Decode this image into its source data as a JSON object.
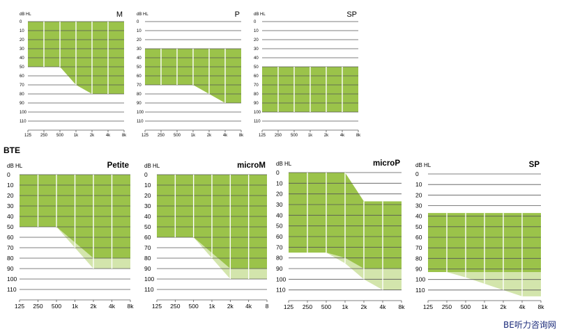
{
  "section_label": "BTE",
  "watermark": "BE听力咨询网",
  "colors": {
    "fill_dark": "#9bc34a",
    "fill_light": "#d3e5ac",
    "grid": "#555555",
    "cell_divider": "#ffffff",
    "text": "#000000"
  },
  "chart_data": [
    {
      "type": "area",
      "title": "M",
      "ylabel": "dB HL",
      "categories": [
        "125",
        "250",
        "500",
        "1k",
        "2k",
        "4k",
        "8k"
      ],
      "yticks": [
        "0",
        "10",
        "20",
        "30",
        "40",
        "50",
        "60",
        "70",
        "80",
        "90",
        "100",
        "110"
      ],
      "ylim": [
        0,
        120
      ],
      "fill_start": "125",
      "top": [
        0,
        0,
        0,
        0,
        0,
        0,
        0
      ],
      "bottom": [
        50,
        50,
        50,
        70,
        80,
        80,
        80
      ],
      "extension": null
    },
    {
      "type": "area",
      "title": "P",
      "ylabel": "dB HL",
      "categories": [
        "125",
        "250",
        "500",
        "1k",
        "2k",
        "4k",
        "8k"
      ],
      "yticks": [
        "0",
        "10",
        "20",
        "30",
        "40",
        "50",
        "60",
        "70",
        "80",
        "90",
        "100",
        "110"
      ],
      "ylim": [
        0,
        120
      ],
      "fill_start": "125",
      "top": [
        30,
        30,
        30,
        30,
        30,
        30,
        30
      ],
      "bottom": [
        70,
        70,
        70,
        70,
        80,
        90,
        90
      ],
      "extension": null
    },
    {
      "type": "area",
      "title": "SP",
      "ylabel": "dB HL",
      "categories": [
        "125",
        "250",
        "500",
        "1k",
        "2k",
        "4k",
        "8k"
      ],
      "yticks": [
        "0",
        "10",
        "20",
        "30",
        "40",
        "50",
        "60",
        "70",
        "80",
        "90",
        "100",
        "110"
      ],
      "ylim": [
        0,
        120
      ],
      "fill_start": "125",
      "top": [
        50,
        50,
        50,
        50,
        50,
        50,
        50
      ],
      "bottom": [
        100,
        100,
        100,
        100,
        100,
        100,
        100
      ],
      "extension": null
    },
    {
      "type": "area",
      "title": "Petite",
      "ylabel": "dB HL",
      "categories": [
        "125",
        "250",
        "500",
        "1k",
        "2k",
        "4k",
        "8k"
      ],
      "yticks": [
        "0",
        "10",
        "20",
        "30",
        "40",
        "50",
        "60",
        "70",
        "80",
        "90",
        "100",
        "110"
      ],
      "ylim": [
        0,
        120
      ],
      "fill_start": "125",
      "top": [
        0,
        0,
        0,
        0,
        0,
        0,
        0
      ],
      "bottom": [
        50,
        50,
        50,
        65,
        80,
        80,
        80
      ],
      "extension": [
        50,
        50,
        50,
        70,
        90,
        90,
        90
      ]
    },
    {
      "type": "area",
      "title": "microM",
      "ylabel": "dB HL",
      "categories": [
        "125",
        "250",
        "500",
        "1k",
        "2k",
        "4k",
        "8"
      ],
      "yticks": [
        "0",
        "10",
        "20",
        "30",
        "40",
        "50",
        "60",
        "70",
        "80",
        "90",
        "100",
        "110"
      ],
      "ylim": [
        0,
        120
      ],
      "fill_start": "125",
      "top": [
        0,
        0,
        0,
        0,
        0,
        0,
        0
      ],
      "bottom": [
        60,
        60,
        60,
        75,
        90,
        90,
        90
      ],
      "extension": [
        60,
        60,
        60,
        80,
        100,
        100,
        100
      ]
    },
    {
      "type": "area",
      "title": "microP",
      "ylabel": "dB HL",
      "categories": [
        "125",
        "250",
        "500",
        "1k",
        "2k",
        "4k",
        "8k"
      ],
      "yticks": [
        "0",
        "10",
        "20",
        "30",
        "40",
        "50",
        "60",
        "70",
        "80",
        "90",
        "100",
        "110"
      ],
      "ylim": [
        0,
        120
      ],
      "fill_start": "125",
      "top": [
        0,
        0,
        0,
        0,
        27,
        27,
        27
      ],
      "bottom": [
        75,
        75,
        75,
        80,
        90,
        90,
        90
      ],
      "extension": [
        75,
        75,
        75,
        85,
        100,
        110,
        110
      ]
    },
    {
      "type": "area",
      "title": "SP",
      "ylabel": "dB HL",
      "categories": [
        "125",
        "250",
        "500",
        "1k",
        "2k",
        "4k",
        "8k"
      ],
      "yticks": [
        "0",
        "10",
        "20",
        "30",
        "40",
        "50",
        "60",
        "70",
        "80",
        "90",
        "100",
        "110"
      ],
      "ylim": [
        0,
        120
      ],
      "fill_start": "125",
      "top": [
        37,
        37,
        37,
        37,
        37,
        37,
        37
      ],
      "bottom": [
        93,
        93,
        93,
        93,
        93,
        93,
        93
      ],
      "extension": [
        93,
        93,
        98,
        104,
        110,
        116,
        116
      ]
    }
  ]
}
